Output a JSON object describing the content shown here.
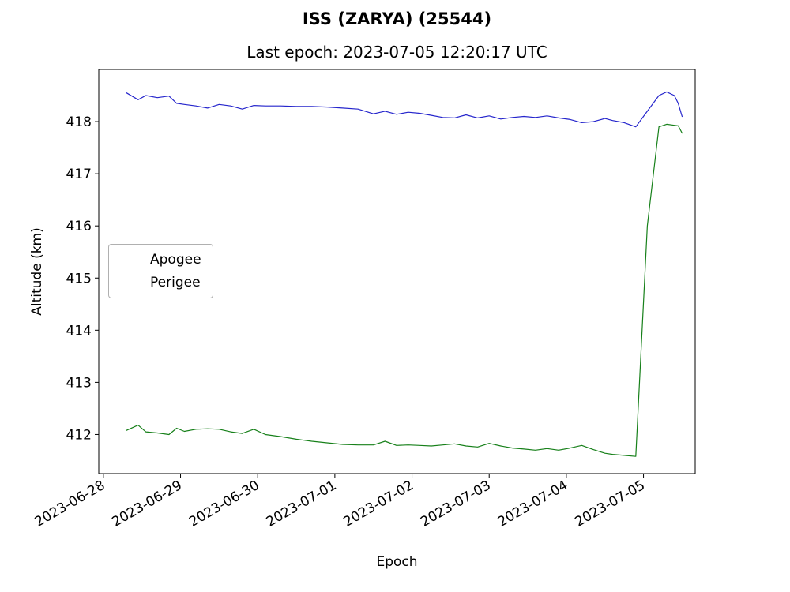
{
  "figure": {
    "title": "ISS (ZARYA) (25544)",
    "subtitle": "Last epoch: 2023-07-05 12:20:17 UTC"
  },
  "chart_data": {
    "type": "line",
    "title": "ISS (ZARYA) (25544)",
    "subtitle": "Last epoch: 2023-07-05 12:20:17 UTC",
    "xlabel": "Epoch",
    "ylabel": "Altitude (km)",
    "x_unit": "days since 2023-06-28 00:00 UTC",
    "xlim": [
      -0.06,
      7.67
    ],
    "ylim": [
      411.25,
      419.0
    ],
    "grid": false,
    "legend_position": "center-left",
    "x_tick_positions": [
      0,
      1,
      2,
      3,
      4,
      5,
      6,
      7
    ],
    "x_tick_labels": [
      "2023-06-28",
      "2023-06-29",
      "2023-06-30",
      "2023-07-01",
      "2023-07-02",
      "2023-07-03",
      "2023-07-04",
      "2023-07-05"
    ],
    "y_ticks": [
      412,
      413,
      414,
      415,
      416,
      417,
      418
    ],
    "x": [
      0.3,
      0.45,
      0.55,
      0.7,
      0.85,
      0.95,
      1.05,
      1.2,
      1.35,
      1.5,
      1.65,
      1.8,
      1.95,
      2.1,
      2.3,
      2.5,
      2.7,
      2.9,
      3.1,
      3.3,
      3.5,
      3.65,
      3.8,
      3.95,
      4.1,
      4.25,
      4.4,
      4.55,
      4.7,
      4.85,
      5.0,
      5.15,
      5.3,
      5.45,
      5.6,
      5.75,
      5.9,
      6.05,
      6.2,
      6.35,
      6.5,
      6.6,
      6.75,
      6.9,
      7.05,
      7.2,
      7.3,
      7.4,
      7.45,
      7.5
    ],
    "series": [
      {
        "name": "Apogee",
        "color": "#2525cc",
        "values": [
          418.55,
          418.42,
          418.5,
          418.46,
          418.49,
          418.35,
          418.33,
          418.3,
          418.26,
          418.33,
          418.3,
          418.24,
          418.31,
          418.3,
          418.3,
          418.29,
          418.29,
          418.28,
          418.26,
          418.24,
          418.15,
          418.2,
          418.14,
          418.18,
          418.16,
          418.12,
          418.08,
          418.07,
          418.13,
          418.07,
          418.11,
          418.05,
          418.08,
          418.1,
          418.08,
          418.11,
          418.07,
          418.04,
          417.98,
          418.0,
          418.06,
          418.02,
          417.98,
          417.9,
          418.2,
          418.5,
          418.57,
          418.5,
          418.35,
          418.1
        ]
      },
      {
        "name": "Perigee",
        "color": "#17801a",
        "values": [
          412.08,
          412.18,
          412.05,
          412.03,
          412.0,
          412.12,
          412.06,
          412.1,
          412.11,
          412.1,
          412.05,
          412.02,
          412.1,
          412.0,
          411.96,
          411.91,
          411.87,
          411.84,
          411.81,
          411.8,
          411.8,
          411.87,
          411.79,
          411.8,
          411.79,
          411.78,
          411.8,
          411.82,
          411.78,
          411.76,
          411.83,
          411.78,
          411.74,
          411.72,
          411.7,
          411.73,
          411.7,
          411.74,
          411.79,
          411.71,
          411.64,
          411.62,
          411.6,
          411.58,
          416.0,
          417.9,
          417.95,
          417.93,
          417.92,
          417.78
        ]
      }
    ]
  }
}
